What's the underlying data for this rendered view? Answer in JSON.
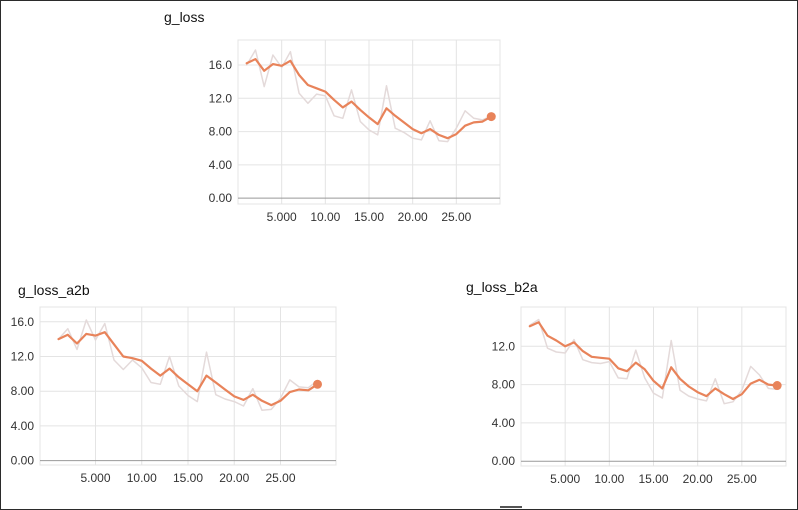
{
  "colors": {
    "smoothed_line": "#e8835a",
    "raw_line": "#e4dada",
    "grid": "#e4e4e4",
    "axis": "#999999",
    "end_marker": "#e8835a"
  },
  "chart_data": [
    {
      "type": "line",
      "title": "g_loss",
      "xlabel": "",
      "ylabel": "",
      "xlim": [
        0,
        30
      ],
      "ylim": [
        -0.7,
        19
      ],
      "grid": true,
      "xticks": [
        5,
        10,
        15,
        20,
        25
      ],
      "xtick_labels": [
        "5.000",
        "10.00",
        "15.00",
        "20.00",
        "25.00"
      ],
      "yticks": [
        0,
        4,
        8,
        12,
        16
      ],
      "ytick_labels": [
        "0.00",
        "4.00",
        "8.00",
        "12.0",
        "16.0"
      ],
      "series": [
        {
          "role": "smoothed",
          "x": [
            1,
            2,
            3,
            4,
            5,
            6,
            7,
            8,
            9,
            10,
            11,
            12,
            13,
            14,
            15,
            16,
            17,
            18,
            19,
            20,
            21,
            22,
            23,
            24,
            25,
            26,
            27,
            28,
            29
          ],
          "y": [
            16.2,
            16.7,
            15.3,
            16.1,
            15.9,
            16.5,
            14.8,
            13.6,
            13.2,
            12.8,
            11.8,
            10.9,
            11.6,
            10.6,
            9.7,
            8.9,
            10.8,
            9.9,
            9.1,
            8.3,
            7.8,
            8.3,
            7.6,
            7.2,
            7.7,
            8.7,
            9.1,
            9.2,
            9.8
          ]
        },
        {
          "role": "raw",
          "x": [
            1,
            2,
            3,
            4,
            5,
            6,
            7,
            8,
            9,
            10,
            11,
            12,
            13,
            14,
            15,
            16,
            17,
            18,
            19,
            20,
            21,
            22,
            23,
            24,
            25,
            26,
            27,
            28,
            29
          ],
          "y": [
            16.0,
            17.8,
            13.4,
            17.2,
            15.7,
            17.6,
            12.6,
            11.4,
            12.5,
            12.3,
            9.9,
            9.6,
            13.0,
            9.2,
            8.2,
            7.6,
            13.5,
            8.4,
            7.9,
            7.2,
            7.0,
            9.3,
            6.9,
            6.8,
            8.4,
            10.5,
            9.6,
            9.4,
            9.9
          ]
        }
      ]
    },
    {
      "type": "line",
      "title": "g_loss_a2b",
      "xlabel": "",
      "ylabel": "",
      "xlim": [
        -1,
        31
      ],
      "ylim": [
        -0.5,
        17.7
      ],
      "grid": true,
      "xticks": [
        5,
        10,
        15,
        20,
        25
      ],
      "xtick_labels": [
        "5.000",
        "10.00",
        "15.00",
        "20.00",
        "25.00"
      ],
      "yticks": [
        0,
        4,
        8,
        12,
        16
      ],
      "ytick_labels": [
        "0.00",
        "4.00",
        "8.00",
        "12.0",
        "16.0"
      ],
      "series": [
        {
          "role": "smoothed",
          "x": [
            1,
            2,
            3,
            4,
            5,
            6,
            7,
            8,
            9,
            10,
            11,
            12,
            13,
            14,
            15,
            16,
            17,
            18,
            19,
            20,
            21,
            22,
            23,
            24,
            25,
            26,
            27,
            28,
            29
          ],
          "y": [
            14.0,
            14.5,
            13.5,
            14.6,
            14.4,
            14.8,
            13.4,
            12.0,
            11.8,
            11.5,
            10.6,
            9.8,
            10.6,
            9.6,
            8.8,
            8.0,
            9.8,
            9.0,
            8.2,
            7.4,
            7.0,
            7.6,
            6.9,
            6.4,
            6.9,
            7.9,
            8.2,
            8.1,
            8.8
          ]
        },
        {
          "role": "raw",
          "x": [
            1,
            2,
            3,
            4,
            5,
            6,
            7,
            8,
            9,
            10,
            11,
            12,
            13,
            14,
            15,
            16,
            17,
            18,
            19,
            20,
            21,
            22,
            23,
            24,
            25,
            26,
            27,
            28,
            29
          ],
          "y": [
            14.0,
            15.2,
            12.8,
            16.2,
            13.9,
            15.8,
            11.6,
            10.5,
            11.6,
            10.7,
            9.0,
            8.8,
            12.0,
            8.6,
            7.5,
            6.8,
            12.5,
            7.6,
            7.1,
            6.8,
            6.3,
            8.3,
            5.8,
            5.9,
            7.2,
            9.3,
            8.5,
            8.4,
            9.2
          ]
        }
      ]
    },
    {
      "type": "line",
      "title": "g_loss_b2a",
      "xlabel": "",
      "ylabel": "",
      "xlim": [
        0,
        30
      ],
      "ylim": [
        -0.5,
        16.1
      ],
      "grid": true,
      "xticks": [
        5,
        10,
        15,
        20,
        25
      ],
      "xtick_labels": [
        "5.000",
        "10.00",
        "15.00",
        "20.00",
        "25.00"
      ],
      "yticks": [
        0,
        4,
        8,
        12
      ],
      "ytick_labels": [
        "0.00",
        "4.00",
        "8.00",
        "12.0"
      ],
      "series": [
        {
          "role": "smoothed",
          "x": [
            1,
            2,
            3,
            4,
            5,
            6,
            7,
            8,
            9,
            10,
            11,
            12,
            13,
            14,
            15,
            16,
            17,
            18,
            19,
            20,
            21,
            22,
            23,
            24,
            25,
            26,
            27,
            28,
            29
          ],
          "y": [
            14.1,
            14.5,
            13.1,
            12.6,
            12.0,
            12.4,
            11.5,
            10.9,
            10.8,
            10.7,
            9.7,
            9.4,
            10.3,
            9.6,
            8.4,
            7.6,
            9.8,
            8.6,
            7.8,
            7.2,
            6.8,
            7.6,
            7.0,
            6.5,
            7.0,
            8.1,
            8.5,
            8.0,
            7.9
          ]
        },
        {
          "role": "raw",
          "x": [
            1,
            2,
            3,
            4,
            5,
            6,
            7,
            8,
            9,
            10,
            11,
            12,
            13,
            14,
            15,
            16,
            17,
            18,
            19,
            20,
            21,
            22,
            23,
            24,
            25,
            26,
            27,
            28,
            29
          ],
          "y": [
            14.2,
            14.8,
            11.8,
            11.4,
            11.3,
            12.7,
            10.6,
            10.3,
            10.2,
            10.4,
            8.7,
            8.6,
            11.6,
            8.7,
            7.1,
            6.6,
            12.6,
            7.4,
            6.8,
            6.5,
            6.3,
            8.6,
            6.0,
            6.2,
            7.4,
            9.9,
            9.0,
            7.6,
            7.5
          ]
        }
      ]
    }
  ]
}
